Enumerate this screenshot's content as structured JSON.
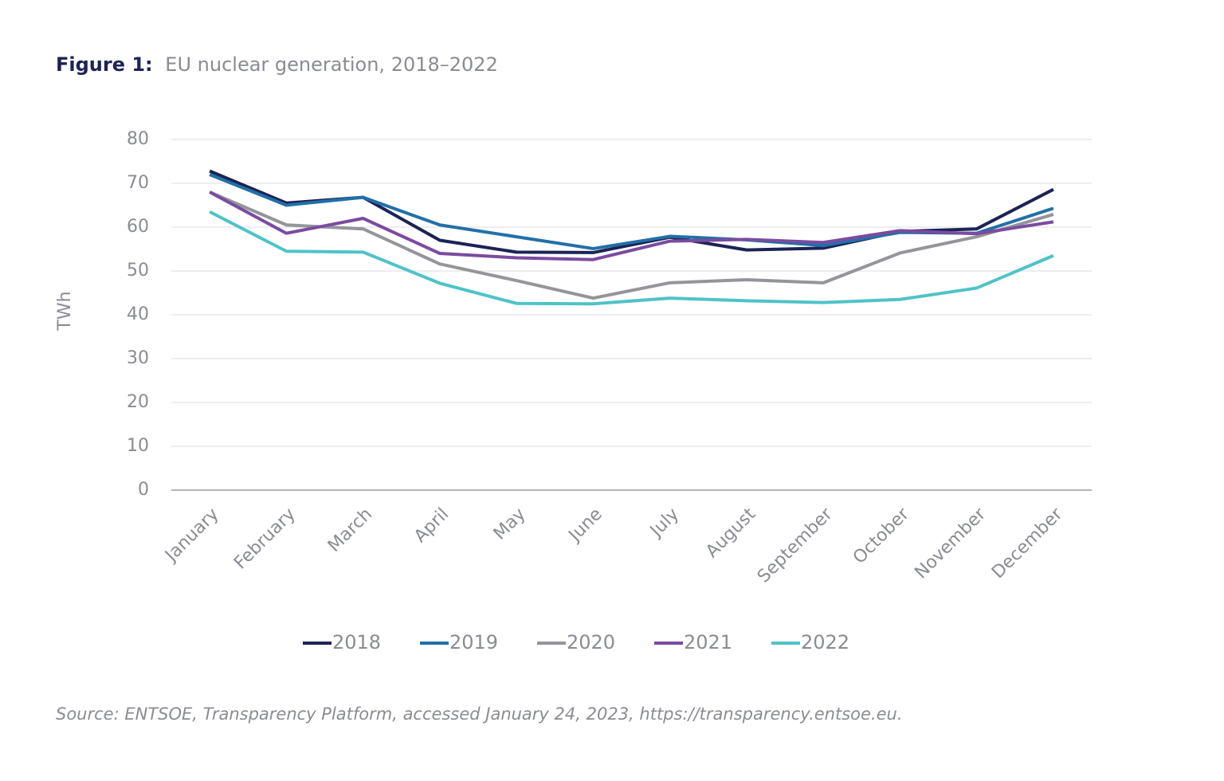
{
  "chart_data": {
    "type": "line",
    "title_label": "Figure 1:",
    "title": "EU nuclear generation, 2018–2022",
    "y_label": "TWh",
    "source": "Source: ENTSOE, Transparency Platform, accessed January 24, 2023, https://transparency.entsoe.eu.",
    "categories": [
      "January",
      "February",
      "March",
      "April",
      "May",
      "June",
      "July",
      "August",
      "September",
      "October",
      "November",
      "December"
    ],
    "series": [
      {
        "name": "2018",
        "color": "#1c2355",
        "values": [
          72.8,
          65.5,
          66.8,
          57,
          54.3,
          54.2,
          57.7,
          54.8,
          55.2,
          59,
          59.6,
          68.6
        ]
      },
      {
        "name": "2019",
        "color": "#2170a8",
        "values": [
          72,
          65,
          66.8,
          60.5,
          57.8,
          55.1,
          57.9,
          57.1,
          55.8,
          58.8,
          58.6,
          64.3
        ]
      },
      {
        "name": "2020",
        "color": "#94959a",
        "values": [
          68,
          60.5,
          59.6,
          51.6,
          47.8,
          43.8,
          47.3,
          48,
          47.3,
          54.1,
          57.8,
          62.9
        ]
      },
      {
        "name": "2021",
        "color": "#7b4ba0",
        "values": [
          68,
          58.6,
          62,
          54,
          53,
          52.6,
          56.8,
          57.2,
          56.5,
          59.2,
          58.5,
          61.2
        ]
      },
      {
        "name": "2022",
        "color": "#4ec3c8",
        "values": [
          63.5,
          54.5,
          54.3,
          47.2,
          42.6,
          42.5,
          43.8,
          43.2,
          42.8,
          43.5,
          46.1,
          53.5
        ]
      }
    ],
    "ylim": [
      0,
      80
    ],
    "yticks": [
      0,
      10,
      20,
      30,
      40,
      50,
      60,
      70,
      80
    ],
    "grid": true,
    "legend": "bottom"
  }
}
